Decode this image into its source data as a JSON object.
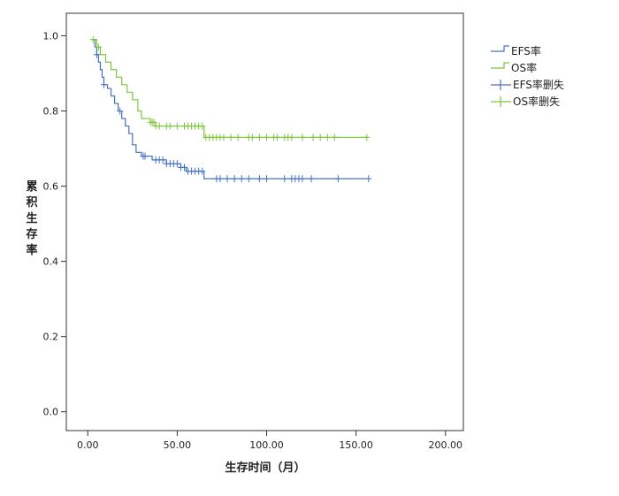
{
  "chart_data": {
    "type": "line",
    "title": "",
    "xlabel": "生存时间（月）",
    "ylabel": "累积生存率",
    "xlim": [
      -12,
      210
    ],
    "ylim": [
      -0.05,
      1.06
    ],
    "x_ticks": [
      0,
      50,
      100,
      150,
      200
    ],
    "x_tick_labels": [
      "0.00",
      "50.00",
      "100.00",
      "150.00",
      "200.00"
    ],
    "y_ticks": [
      0,
      0.2,
      0.4,
      0.6,
      0.8,
      1.0
    ],
    "y_tick_labels": [
      "0.0",
      "0.2",
      "0.4",
      "0.6",
      "0.8",
      "1.0"
    ],
    "grid": false,
    "legend_position": "right",
    "legend": [
      "EFS率",
      "OS率",
      "EFS率删失",
      "OS率删失"
    ],
    "series": [
      {
        "name": "EFS率",
        "color": "#4472c4",
        "steps": [
          [
            2,
            0.99
          ],
          [
            4,
            0.97
          ],
          [
            5,
            0.95
          ],
          [
            6,
            0.93
          ],
          [
            7,
            0.91
          ],
          [
            8,
            0.89
          ],
          [
            9,
            0.87
          ],
          [
            11,
            0.86
          ],
          [
            13,
            0.84
          ],
          [
            15,
            0.82
          ],
          [
            17,
            0.8
          ],
          [
            19,
            0.78
          ],
          [
            21,
            0.76
          ],
          [
            23,
            0.74
          ],
          [
            25,
            0.71
          ],
          [
            27,
            0.69
          ],
          [
            30,
            0.68
          ],
          [
            36,
            0.67
          ],
          [
            44,
            0.66
          ],
          [
            52,
            0.65
          ],
          [
            55,
            0.64
          ],
          [
            65,
            0.62
          ]
        ],
        "end_x": 157,
        "censored": [
          5,
          9,
          18,
          31,
          32,
          38,
          40,
          42,
          44,
          46,
          48,
          50,
          52,
          54,
          56,
          58,
          60,
          62,
          64,
          72,
          74,
          78,
          82,
          86,
          90,
          96,
          100,
          110,
          114,
          116,
          118,
          120,
          125,
          140,
          157
        ]
      },
      {
        "name": "OS率",
        "color": "#7dc53d",
        "steps": [
          [
            2,
            0.99
          ],
          [
            5,
            0.97
          ],
          [
            7,
            0.95
          ],
          [
            10,
            0.93
          ],
          [
            13,
            0.91
          ],
          [
            16,
            0.89
          ],
          [
            19,
            0.87
          ],
          [
            22,
            0.85
          ],
          [
            25,
            0.83
          ],
          [
            28,
            0.8
          ],
          [
            30,
            0.78
          ],
          [
            35,
            0.77
          ],
          [
            38,
            0.76
          ],
          [
            65,
            0.73
          ]
        ],
        "end_x": 157,
        "censored": [
          3,
          6,
          35,
          36,
          37,
          38,
          40,
          44,
          46,
          50,
          54,
          56,
          58,
          60,
          62,
          64,
          66,
          68,
          70,
          72,
          74,
          76,
          80,
          84,
          90,
          92,
          96,
          100,
          104,
          106,
          110,
          112,
          114,
          120,
          126,
          130,
          134,
          138,
          156
        ]
      }
    ]
  }
}
